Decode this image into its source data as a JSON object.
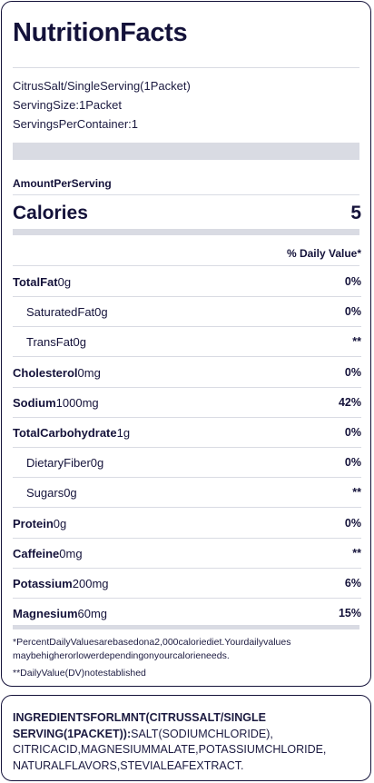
{
  "title": "NutritionFacts",
  "info": {
    "product": "CitrusSalt/SingleServing(1Packet)",
    "serving_size": "ServingSize:1Packet",
    "servings_per_container": "ServingsPerContainer:1"
  },
  "amount_per_serving": "AmountPerServing",
  "calories": {
    "label": "Calories",
    "value": "5"
  },
  "daily_value_header": "% Daily Value*",
  "nutrients": [
    {
      "name": "TotalFat",
      "amount": "0g",
      "dv": "0%",
      "sub": false
    },
    {
      "name": "SaturatedFat",
      "amount": "0g",
      "dv": "0%",
      "sub": true
    },
    {
      "name": "TransFat",
      "amount": "0g",
      "dv": "**",
      "sub": true
    },
    {
      "name": "Cholesterol",
      "amount": "0mg",
      "dv": "0%",
      "sub": false
    },
    {
      "name": "Sodium",
      "amount": "1000mg",
      "dv": "42%",
      "sub": false
    },
    {
      "name": "TotalCarbohydrate",
      "amount": "1g",
      "dv": "0%",
      "sub": false
    },
    {
      "name": "DietaryFiber",
      "amount": "0g",
      "dv": "0%",
      "sub": true
    },
    {
      "name": "Sugars",
      "amount": "0g",
      "dv": "**",
      "sub": true
    },
    {
      "name": "Protein",
      "amount": "0g",
      "dv": "0%",
      "sub": false
    },
    {
      "name": "Caffeine",
      "amount": "0mg",
      "dv": "**",
      "sub": false
    },
    {
      "name": "Potassium",
      "amount": "200mg",
      "dv": "6%",
      "sub": false
    },
    {
      "name": "Magnesium",
      "amount": "60mg",
      "dv": "15%",
      "sub": false
    }
  ],
  "footnotes": {
    "percent_daily": "*PercentDailyValuesarebasedona2,000caloriediet.Yourdailyvalues maybehigherorlowerdependingonyourcalorieneeds.",
    "not_established": "**DailyValue(DV)notestablished"
  },
  "ingredients": {
    "heading": "INGREDIENTSFORLMNT(CITRUSSALT/SINGLE SERVING(1PACKET)):",
    "list": "SALT(SODIUMCHLORIDE), CITRICACID,MAGNESIUMMALATE,POTASSIUMCHLORIDE, NATURALFLAVORS,STEVIALEAFEXTRACT."
  },
  "colors": {
    "text": "#14123a",
    "divider": "#d9dbe3"
  }
}
